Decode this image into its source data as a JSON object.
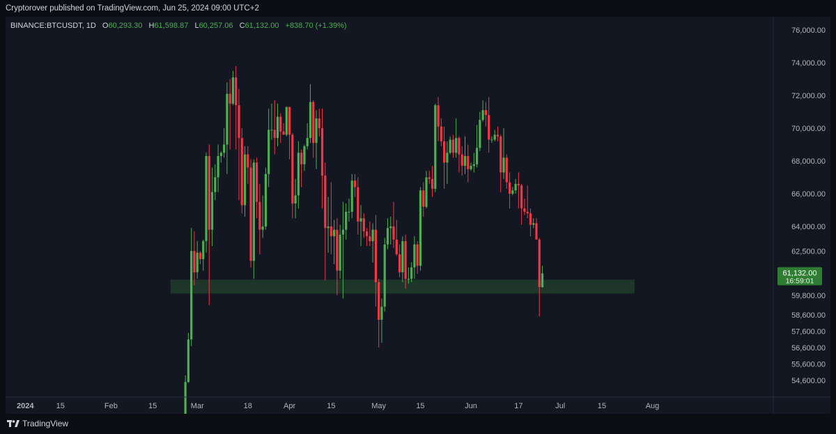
{
  "published_by": "Cryptorover published on TradingView.com, Jun 25, 2024 09:00 UTC+2",
  "legend": {
    "symbol": "BINANCE:BTCUSDT, 1D",
    "open_label": "O",
    "open": "60,293.30",
    "high_label": "H",
    "high": "61,598.87",
    "low_label": "L",
    "low": "60,257.06",
    "close_label": "C",
    "close": "61,132.00",
    "change": "+838.70 (+1.39%)"
  },
  "brand": {
    "name": "TradingView",
    "logo": "tradingview-logo-icon"
  },
  "colors": {
    "up": "#4caf50",
    "down": "#f23645",
    "zone": "#1f3a2a",
    "price_tag": "#2e7d32",
    "background": "#131722"
  },
  "chart_data": {
    "type": "candlestick",
    "title": "",
    "xlabel": "",
    "ylabel": "",
    "y_axis_ticks": [
      {
        "value": 76000,
        "label": "76,000.00"
      },
      {
        "value": 74000,
        "label": "74,000.00"
      },
      {
        "value": 72000,
        "label": "72,000.00"
      },
      {
        "value": 70000,
        "label": "70,000.00"
      },
      {
        "value": 68000,
        "label": "68,000.00"
      },
      {
        "value": 66000,
        "label": "66,000.00"
      },
      {
        "value": 64000,
        "label": "64,000.00"
      },
      {
        "value": 62500,
        "label": "62,500.00"
      },
      {
        "value": 59800,
        "label": "59,800.00"
      },
      {
        "value": 58600,
        "label": "58,600.00"
      },
      {
        "value": 57600,
        "label": "57,600.00"
      },
      {
        "value": 56600,
        "label": "56,600.00"
      },
      {
        "value": 55600,
        "label": "55,600.00"
      },
      {
        "value": 54600,
        "label": "54,600.00"
      }
    ],
    "x_axis_ticks": [
      {
        "date": "2024-01-01",
        "label": "2024"
      },
      {
        "date": "2024-01-15",
        "label": "15"
      },
      {
        "date": "2024-02-01",
        "label": "Feb"
      },
      {
        "date": "2024-02-15",
        "label": "15"
      },
      {
        "date": "2024-03-01",
        "label": "Mar"
      },
      {
        "date": "2024-03-18",
        "label": "18"
      },
      {
        "date": "2024-04-01",
        "label": "Apr"
      },
      {
        "date": "2024-04-15",
        "label": "15"
      },
      {
        "date": "2024-05-01",
        "label": "May"
      },
      {
        "date": "2024-05-15",
        "label": "15"
      },
      {
        "date": "2024-06-01",
        "label": "Jun"
      },
      {
        "date": "2024-06-17",
        "label": "17"
      },
      {
        "date": "2024-07-01",
        "label": "Jul"
      },
      {
        "date": "2024-07-15",
        "label": "15"
      },
      {
        "date": "2024-08-01",
        "label": "Aug"
      }
    ],
    "support_zone": {
      "low": 59900,
      "high": 60750,
      "start": "2024-02-21",
      "end": "2024-07-26"
    },
    "last_price": {
      "value": 61132,
      "label": "61,132.00",
      "countdown": "16:59:01"
    },
    "candles": [
      {
        "date": "2024-02-26",
        "o": 51700,
        "h": 54900,
        "l": 50900,
        "c": 54500
      },
      {
        "date": "2024-02-27",
        "o": 54500,
        "h": 57500,
        "l": 54450,
        "c": 57100
      },
      {
        "date": "2024-02-28",
        "o": 57100,
        "h": 63900,
        "l": 56700,
        "c": 62500
      },
      {
        "date": "2024-02-29",
        "o": 62500,
        "h": 63700,
        "l": 60400,
        "c": 61200
      },
      {
        "date": "2024-03-01",
        "o": 61200,
        "h": 63100,
        "l": 60800,
        "c": 62400
      },
      {
        "date": "2024-03-02",
        "o": 62400,
        "h": 62500,
        "l": 61700,
        "c": 62000
      },
      {
        "date": "2024-03-03",
        "o": 62000,
        "h": 63200,
        "l": 61300,
        "c": 63100
      },
      {
        "date": "2024-03-04",
        "o": 63100,
        "h": 68500,
        "l": 62400,
        "c": 68300
      },
      {
        "date": "2024-03-05",
        "o": 68300,
        "h": 69000,
        "l": 59200,
        "c": 63800
      },
      {
        "date": "2024-03-06",
        "o": 63800,
        "h": 67600,
        "l": 62800,
        "c": 66100
      },
      {
        "date": "2024-03-07",
        "o": 66100,
        "h": 67800,
        "l": 65600,
        "c": 67000
      },
      {
        "date": "2024-03-08",
        "o": 67000,
        "h": 69000,
        "l": 66100,
        "c": 68300
      },
      {
        "date": "2024-03-09",
        "o": 68300,
        "h": 68600,
        "l": 67900,
        "c": 68500
      },
      {
        "date": "2024-03-10",
        "o": 68500,
        "h": 70000,
        "l": 68200,
        "c": 69000
      },
      {
        "date": "2024-03-11",
        "o": 69000,
        "h": 72800,
        "l": 67200,
        "c": 72100
      },
      {
        "date": "2024-03-12",
        "o": 72100,
        "h": 73000,
        "l": 68700,
        "c": 71500
      },
      {
        "date": "2024-03-13",
        "o": 71500,
        "h": 73500,
        "l": 71400,
        "c": 73100
      },
      {
        "date": "2024-03-14",
        "o": 73100,
        "h": 73800,
        "l": 68700,
        "c": 71400
      },
      {
        "date": "2024-03-15",
        "o": 71400,
        "h": 72400,
        "l": 65600,
        "c": 69400
      },
      {
        "date": "2024-03-16",
        "o": 69400,
        "h": 70000,
        "l": 64800,
        "c": 65300
      },
      {
        "date": "2024-03-17",
        "o": 65300,
        "h": 68900,
        "l": 64600,
        "c": 68400
      },
      {
        "date": "2024-03-18",
        "o": 68400,
        "h": 68900,
        "l": 66600,
        "c": 67600
      },
      {
        "date": "2024-03-19",
        "o": 67600,
        "h": 68100,
        "l": 61500,
        "c": 61900
      },
      {
        "date": "2024-03-20",
        "o": 61900,
        "h": 68100,
        "l": 60800,
        "c": 67900
      },
      {
        "date": "2024-03-21",
        "o": 67900,
        "h": 68200,
        "l": 64500,
        "c": 65500
      },
      {
        "date": "2024-03-22",
        "o": 65500,
        "h": 66600,
        "l": 62300,
        "c": 63800
      },
      {
        "date": "2024-03-23",
        "o": 63800,
        "h": 65900,
        "l": 63300,
        "c": 64000
      },
      {
        "date": "2024-03-24",
        "o": 64000,
        "h": 67600,
        "l": 63800,
        "c": 67200
      },
      {
        "date": "2024-03-25",
        "o": 67200,
        "h": 71200,
        "l": 66400,
        "c": 69900
      },
      {
        "date": "2024-03-26",
        "o": 69900,
        "h": 71500,
        "l": 69300,
        "c": 69900
      },
      {
        "date": "2024-03-27",
        "o": 69900,
        "h": 71700,
        "l": 68400,
        "c": 69400
      },
      {
        "date": "2024-03-28",
        "o": 69400,
        "h": 71500,
        "l": 68900,
        "c": 70700
      },
      {
        "date": "2024-03-29",
        "o": 70700,
        "h": 70900,
        "l": 69100,
        "c": 69800
      },
      {
        "date": "2024-03-30",
        "o": 69800,
        "h": 70300,
        "l": 69600,
        "c": 69600
      },
      {
        "date": "2024-03-31",
        "o": 69600,
        "h": 71300,
        "l": 69500,
        "c": 71300
      },
      {
        "date": "2024-04-01",
        "o": 71300,
        "h": 71300,
        "l": 68100,
        "c": 69600
      },
      {
        "date": "2024-04-02",
        "o": 69600,
        "h": 69700,
        "l": 64500,
        "c": 65400
      },
      {
        "date": "2024-04-03",
        "o": 65400,
        "h": 66900,
        "l": 64500,
        "c": 65900
      },
      {
        "date": "2024-04-04",
        "o": 65900,
        "h": 69200,
        "l": 65100,
        "c": 68500
      },
      {
        "date": "2024-04-05",
        "o": 68500,
        "h": 68700,
        "l": 66400,
        "c": 67800
      },
      {
        "date": "2024-04-06",
        "o": 67800,
        "h": 69000,
        "l": 67400,
        "c": 68900
      },
      {
        "date": "2024-04-07",
        "o": 68900,
        "h": 70300,
        "l": 68700,
        "c": 69400
      },
      {
        "date": "2024-04-08",
        "o": 69400,
        "h": 72700,
        "l": 69100,
        "c": 71600
      },
      {
        "date": "2024-04-09",
        "o": 71600,
        "h": 71700,
        "l": 68200,
        "c": 69100
      },
      {
        "date": "2024-04-10",
        "o": 69100,
        "h": 71100,
        "l": 67500,
        "c": 70600
      },
      {
        "date": "2024-04-11",
        "o": 70600,
        "h": 71200,
        "l": 69500,
        "c": 70000
      },
      {
        "date": "2024-04-12",
        "o": 70000,
        "h": 71200,
        "l": 65100,
        "c": 67100
      },
      {
        "date": "2024-04-13",
        "o": 67100,
        "h": 67900,
        "l": 60700,
        "c": 63900
      },
      {
        "date": "2024-04-14",
        "o": 63900,
        "h": 65800,
        "l": 62400,
        "c": 64000
      },
      {
        "date": "2024-04-15",
        "o": 64000,
        "h": 66700,
        "l": 62300,
        "c": 63400
      },
      {
        "date": "2024-04-16",
        "o": 63400,
        "h": 64400,
        "l": 61700,
        "c": 63800
      },
      {
        "date": "2024-04-17",
        "o": 63800,
        "h": 64500,
        "l": 59800,
        "c": 61300
      },
      {
        "date": "2024-04-18",
        "o": 61300,
        "h": 64100,
        "l": 60800,
        "c": 63500
      },
      {
        "date": "2024-04-19",
        "o": 63500,
        "h": 65500,
        "l": 59600,
        "c": 63800
      },
      {
        "date": "2024-04-20",
        "o": 63800,
        "h": 65400,
        "l": 63200,
        "c": 64900
      },
      {
        "date": "2024-04-21",
        "o": 64900,
        "h": 65700,
        "l": 64300,
        "c": 64900
      },
      {
        "date": "2024-04-22",
        "o": 64900,
        "h": 67200,
        "l": 64500,
        "c": 66800
      },
      {
        "date": "2024-04-23",
        "o": 66800,
        "h": 67200,
        "l": 65800,
        "c": 66400
      },
      {
        "date": "2024-04-24",
        "o": 66400,
        "h": 67000,
        "l": 63500,
        "c": 64300
      },
      {
        "date": "2024-04-25",
        "o": 64300,
        "h": 65300,
        "l": 62800,
        "c": 64500
      },
      {
        "date": "2024-04-26",
        "o": 64500,
        "h": 64800,
        "l": 63300,
        "c": 63700
      },
      {
        "date": "2024-04-27",
        "o": 63700,
        "h": 63900,
        "l": 62800,
        "c": 63400
      },
      {
        "date": "2024-04-28",
        "o": 63400,
        "h": 64300,
        "l": 62800,
        "c": 63100
      },
      {
        "date": "2024-04-29",
        "o": 63100,
        "h": 64200,
        "l": 61800,
        "c": 63800
      },
      {
        "date": "2024-04-30",
        "o": 63800,
        "h": 64700,
        "l": 59100,
        "c": 60600
      },
      {
        "date": "2024-05-01",
        "o": 60600,
        "h": 60800,
        "l": 56600,
        "c": 58300
      },
      {
        "date": "2024-05-02",
        "o": 58300,
        "h": 59600,
        "l": 56900,
        "c": 59100
      },
      {
        "date": "2024-05-03",
        "o": 59100,
        "h": 63300,
        "l": 58800,
        "c": 62900
      },
      {
        "date": "2024-05-04",
        "o": 62900,
        "h": 64500,
        "l": 62600,
        "c": 63900
      },
      {
        "date": "2024-05-05",
        "o": 63900,
        "h": 64600,
        "l": 62900,
        "c": 64000
      },
      {
        "date": "2024-05-06",
        "o": 64000,
        "h": 65500,
        "l": 62700,
        "c": 63200
      },
      {
        "date": "2024-05-07",
        "o": 63200,
        "h": 64400,
        "l": 62200,
        "c": 62300
      },
      {
        "date": "2024-05-08",
        "o": 62300,
        "h": 62900,
        "l": 60900,
        "c": 61200
      },
      {
        "date": "2024-05-09",
        "o": 61200,
        "h": 63400,
        "l": 60600,
        "c": 63100
      },
      {
        "date": "2024-05-10",
        "o": 63100,
        "h": 63500,
        "l": 60200,
        "c": 60800
      },
      {
        "date": "2024-05-11",
        "o": 60800,
        "h": 61500,
        "l": 60500,
        "c": 60800
      },
      {
        "date": "2024-05-12",
        "o": 60800,
        "h": 61800,
        "l": 60600,
        "c": 61500
      },
      {
        "date": "2024-05-13",
        "o": 61500,
        "h": 63400,
        "l": 60800,
        "c": 62900
      },
      {
        "date": "2024-05-14",
        "o": 62900,
        "h": 63100,
        "l": 61100,
        "c": 61600
      },
      {
        "date": "2024-05-15",
        "o": 61600,
        "h": 66400,
        "l": 61300,
        "c": 66200
      },
      {
        "date": "2024-05-16",
        "o": 66200,
        "h": 66700,
        "l": 64600,
        "c": 65200
      },
      {
        "date": "2024-05-17",
        "o": 65200,
        "h": 67400,
        "l": 65100,
        "c": 67000
      },
      {
        "date": "2024-05-18",
        "o": 67000,
        "h": 67400,
        "l": 66600,
        "c": 66900
      },
      {
        "date": "2024-05-19",
        "o": 66900,
        "h": 67700,
        "l": 65800,
        "c": 66300
      },
      {
        "date": "2024-05-20",
        "o": 66300,
        "h": 71500,
        "l": 66100,
        "c": 71400
      },
      {
        "date": "2024-05-21",
        "o": 71400,
        "h": 71900,
        "l": 69200,
        "c": 70100
      },
      {
        "date": "2024-05-22",
        "o": 70100,
        "h": 70600,
        "l": 68900,
        "c": 69200
      },
      {
        "date": "2024-05-23",
        "o": 69200,
        "h": 70100,
        "l": 66300,
        "c": 67900
      },
      {
        "date": "2024-05-24",
        "o": 67900,
        "h": 69200,
        "l": 66600,
        "c": 68500
      },
      {
        "date": "2024-05-25",
        "o": 68500,
        "h": 69500,
        "l": 68400,
        "c": 69300
      },
      {
        "date": "2024-05-26",
        "o": 69300,
        "h": 69600,
        "l": 68200,
        "c": 68500
      },
      {
        "date": "2024-05-27",
        "o": 68500,
        "h": 70600,
        "l": 68200,
        "c": 69400
      },
      {
        "date": "2024-05-28",
        "o": 69400,
        "h": 69500,
        "l": 67300,
        "c": 68400
      },
      {
        "date": "2024-05-29",
        "o": 68400,
        "h": 68900,
        "l": 67100,
        "c": 67700
      },
      {
        "date": "2024-05-30",
        "o": 67700,
        "h": 69500,
        "l": 67200,
        "c": 68300
      },
      {
        "date": "2024-05-31",
        "o": 68300,
        "h": 69000,
        "l": 66700,
        "c": 67500
      },
      {
        "date": "2024-06-01",
        "o": 67500,
        "h": 67900,
        "l": 67400,
        "c": 67700
      },
      {
        "date": "2024-06-02",
        "o": 67700,
        "h": 68500,
        "l": 67300,
        "c": 67800
      },
      {
        "date": "2024-06-03",
        "o": 67800,
        "h": 70200,
        "l": 67600,
        "c": 68800
      },
      {
        "date": "2024-06-04",
        "o": 68800,
        "h": 71000,
        "l": 68600,
        "c": 70500
      },
      {
        "date": "2024-06-05",
        "o": 70500,
        "h": 71700,
        "l": 70400,
        "c": 71100
      },
      {
        "date": "2024-06-06",
        "o": 71100,
        "h": 71600,
        "l": 70100,
        "c": 70800
      },
      {
        "date": "2024-06-07",
        "o": 70800,
        "h": 71900,
        "l": 68500,
        "c": 69300
      },
      {
        "date": "2024-06-08",
        "o": 69300,
        "h": 69500,
        "l": 69100,
        "c": 69300
      },
      {
        "date": "2024-06-09",
        "o": 69300,
        "h": 69900,
        "l": 69200,
        "c": 69600
      },
      {
        "date": "2024-06-10",
        "o": 69600,
        "h": 70100,
        "l": 69200,
        "c": 69500
      },
      {
        "date": "2024-06-11",
        "o": 69500,
        "h": 69600,
        "l": 66100,
        "c": 67300
      },
      {
        "date": "2024-06-12",
        "o": 67300,
        "h": 70000,
        "l": 66900,
        "c": 68200
      },
      {
        "date": "2024-06-13",
        "o": 68200,
        "h": 68400,
        "l": 66300,
        "c": 66700
      },
      {
        "date": "2024-06-14",
        "o": 66700,
        "h": 67300,
        "l": 65100,
        "c": 66000
      },
      {
        "date": "2024-06-15",
        "o": 66000,
        "h": 66400,
        "l": 65900,
        "c": 66200
      },
      {
        "date": "2024-06-16",
        "o": 66200,
        "h": 66900,
        "l": 66000,
        "c": 66600
      },
      {
        "date": "2024-06-17",
        "o": 66600,
        "h": 67300,
        "l": 65100,
        "c": 66500
      },
      {
        "date": "2024-06-18",
        "o": 66500,
        "h": 66600,
        "l": 64100,
        "c": 65100
      },
      {
        "date": "2024-06-19",
        "o": 65100,
        "h": 65700,
        "l": 64700,
        "c": 64900
      },
      {
        "date": "2024-06-20",
        "o": 64900,
        "h": 66500,
        "l": 64500,
        "c": 64800
      },
      {
        "date": "2024-06-21",
        "o": 64800,
        "h": 65100,
        "l": 63400,
        "c": 64100
      },
      {
        "date": "2024-06-22",
        "o": 64100,
        "h": 64500,
        "l": 63900,
        "c": 64200
      },
      {
        "date": "2024-06-23",
        "o": 64200,
        "h": 64500,
        "l": 63200,
        "c": 63200
      },
      {
        "date": "2024-06-24",
        "o": 63200,
        "h": 63300,
        "l": 58500,
        "c": 60300
      },
      {
        "date": "2024-06-25",
        "o": 60293.3,
        "h": 61598.87,
        "l": 60257.06,
        "c": 61132
      }
    ]
  }
}
